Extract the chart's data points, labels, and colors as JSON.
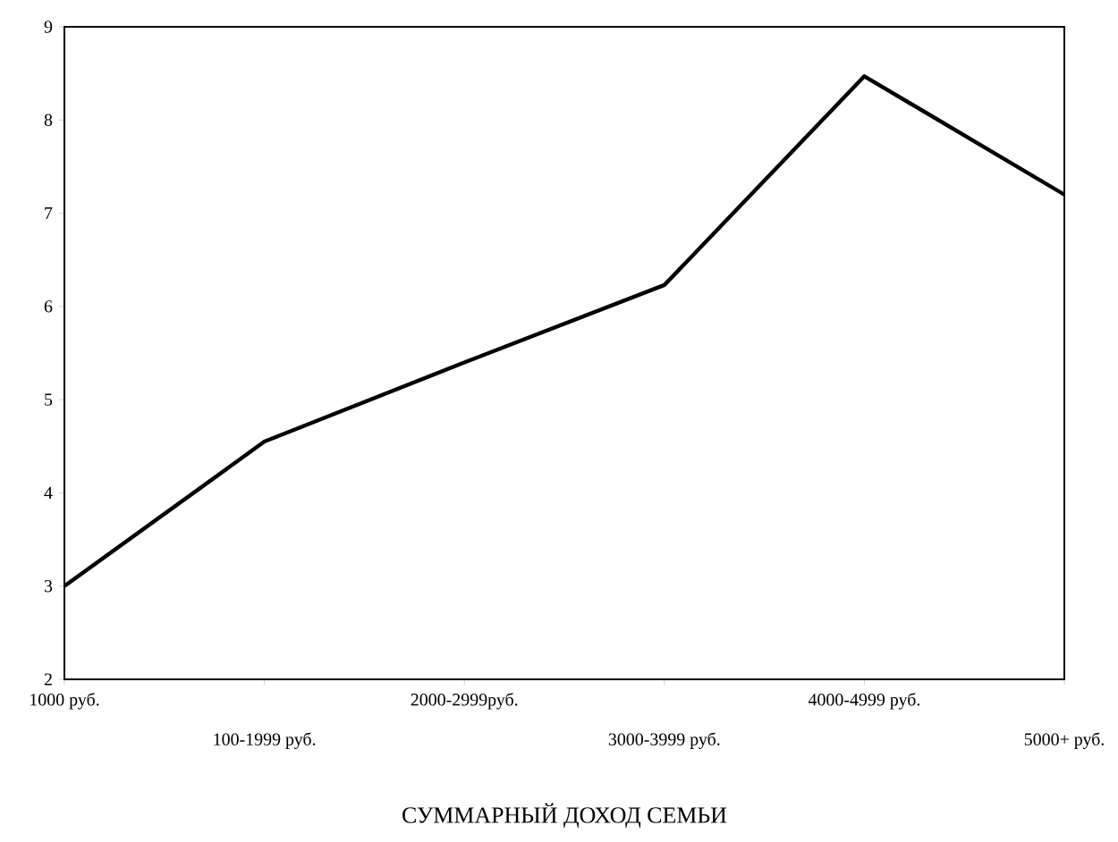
{
  "chart_data": {
    "type": "line",
    "xlabel": "СУММАРНЫЙ ДОХОД СЕМЬИ",
    "categories": [
      "1000 руб.",
      "100-1999 руб.",
      "2000-2999руб.",
      "3000-3999 руб.",
      "4000-4999 руб.",
      "5000+ руб."
    ],
    "values": [
      3.0,
      4.55,
      5.4,
      6.23,
      8.47,
      7.2
    ],
    "color": "#000000",
    "ylim": [
      2,
      9
    ],
    "yticks": [
      2,
      3,
      4,
      5,
      6,
      7,
      8,
      9
    ],
    "grid": false,
    "marker": "none",
    "line_style": "solid"
  }
}
